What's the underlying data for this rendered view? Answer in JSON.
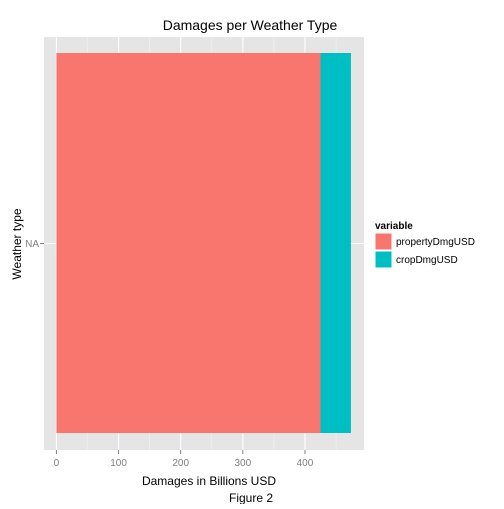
{
  "chart_data": {
    "type": "bar",
    "orientation": "horizontal",
    "stacked": true,
    "title": "Damages per Weather Type",
    "xlabel": "Damages in Billions USD",
    "ylabel": "Weather type",
    "categories": [
      "NA"
    ],
    "series": [
      {
        "name": "propertyDmgUSD",
        "values": [
          425
        ],
        "color": "#F8766D"
      },
      {
        "name": "cropDmgUSD",
        "values": [
          49
        ],
        "color": "#00BFC4"
      }
    ],
    "xlim": [
      -20,
      495
    ],
    "xticks": [
      "0",
      "100",
      "200",
      "300",
      "400"
    ],
    "tick_values": [
      0,
      100,
      200,
      300,
      400
    ],
    "grid": true,
    "legend": {
      "title": "variable",
      "position": "right"
    },
    "caption": "Figure 2"
  },
  "colors": {
    "panel": "#E5E5E5",
    "major_grid": "#FFFFFF",
    "minor_grid": "#F2F2F2",
    "tick_text": "#7F7F7F"
  }
}
